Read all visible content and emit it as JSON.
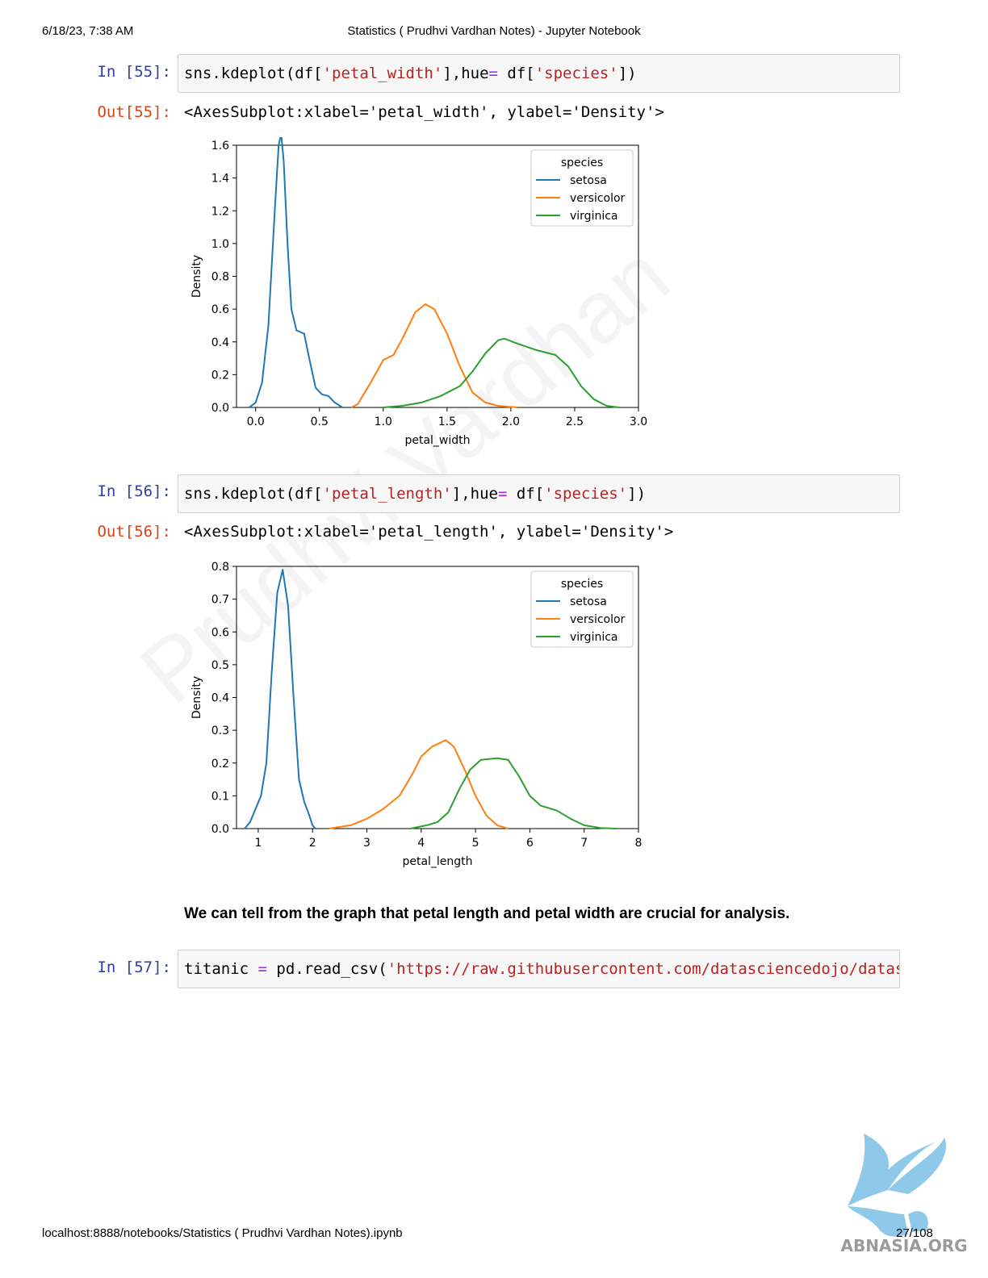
{
  "header": {
    "datetime": "6/18/23, 7:38 AM",
    "title": "Statistics ( Prudhvi Vardhan Notes) - Jupyter Notebook"
  },
  "cells": [
    {
      "in_prompt": "In [55]:",
      "code": {
        "p1": "sns.kdeplot(df[",
        "s1": "'petal_width'",
        "p2": "],hue",
        "op": "=",
        "p3": " df[",
        "s2": "'species'",
        "p4": "])"
      },
      "out_prompt": "Out[55]:",
      "out_text": "<AxesSubplot:xlabel='petal_width', ylabel='Density'>"
    },
    {
      "in_prompt": "In [56]:",
      "code": {
        "p1": "sns.kdeplot(df[",
        "s1": "'petal_length'",
        "p2": "],hue",
        "op": "=",
        "p3": " df[",
        "s2": "'species'",
        "p4": "])"
      },
      "out_prompt": "Out[56]:",
      "out_text": "<AxesSubplot:xlabel='petal_length', ylabel='Density'>"
    },
    {
      "in_prompt": "In [57]:",
      "code": {
        "p1": "titanic ",
        "op": "=",
        "p2": " pd.read_csv(",
        "s1": "'https://raw.githubusercontent.com/datasciencedojo/datas"
      }
    }
  ],
  "markdown": "We can tell from the graph that petal length and petal width are crucial for analysis.",
  "footer": {
    "url": "localhost:8888/notebooks/Statistics ( Prudhvi Vardhan Notes).ipynb",
    "page": "27/108"
  },
  "watermark": "Prudhvi Vardhan",
  "colors": {
    "setosa": "#1f77b4",
    "versicolor": "#ff7f0e",
    "virginica": "#2ca02c",
    "in_prompt": "#303f9f",
    "out_prompt": "#d84315",
    "string": "#ba2121",
    "operator": "#aa22ff"
  },
  "logo_text": "ABNASIA.ORG",
  "chart_data": [
    {
      "type": "line",
      "xlabel": "petal_width",
      "ylabel": "Density",
      "xlim": [
        -0.15,
        3.0
      ],
      "ylim": [
        0,
        1.6
      ],
      "xticks": [
        "0.0",
        "0.5",
        "1.0",
        "1.5",
        "2.0",
        "2.5",
        "3.0"
      ],
      "yticks": [
        "0.0",
        "0.2",
        "0.4",
        "0.6",
        "0.8",
        "1.0",
        "1.2",
        "1.4",
        "1.6"
      ],
      "legend": {
        "title": "species",
        "position": "top-right"
      },
      "series": [
        {
          "name": "setosa",
          "color": "#1f77b4",
          "points": [
            [
              -0.05,
              0
            ],
            [
              0.0,
              0.03
            ],
            [
              0.05,
              0.15
            ],
            [
              0.1,
              0.5
            ],
            [
              0.15,
              1.2
            ],
            [
              0.18,
              1.6
            ],
            [
              0.2,
              1.67
            ],
            [
              0.22,
              1.5
            ],
            [
              0.25,
              1.0
            ],
            [
              0.28,
              0.6
            ],
            [
              0.32,
              0.47
            ],
            [
              0.38,
              0.45
            ],
            [
              0.42,
              0.3
            ],
            [
              0.47,
              0.12
            ],
            [
              0.52,
              0.08
            ],
            [
              0.57,
              0.07
            ],
            [
              0.62,
              0.03
            ],
            [
              0.68,
              0
            ]
          ]
        },
        {
          "name": "versicolor",
          "color": "#ff7f0e",
          "points": [
            [
              0.75,
              0
            ],
            [
              0.8,
              0.02
            ],
            [
              0.9,
              0.15
            ],
            [
              1.0,
              0.29
            ],
            [
              1.08,
              0.32
            ],
            [
              1.15,
              0.42
            ],
            [
              1.25,
              0.58
            ],
            [
              1.33,
              0.63
            ],
            [
              1.4,
              0.6
            ],
            [
              1.5,
              0.45
            ],
            [
              1.6,
              0.25
            ],
            [
              1.7,
              0.09
            ],
            [
              1.8,
              0.03
            ],
            [
              1.9,
              0.01
            ],
            [
              2.05,
              0
            ]
          ]
        },
        {
          "name": "virginica",
          "color": "#2ca02c",
          "points": [
            [
              1.0,
              0
            ],
            [
              1.15,
              0.01
            ],
            [
              1.3,
              0.03
            ],
            [
              1.45,
              0.07
            ],
            [
              1.6,
              0.13
            ],
            [
              1.7,
              0.22
            ],
            [
              1.8,
              0.33
            ],
            [
              1.9,
              0.41
            ],
            [
              1.95,
              0.42
            ],
            [
              2.05,
              0.39
            ],
            [
              2.2,
              0.35
            ],
            [
              2.35,
              0.32
            ],
            [
              2.45,
              0.25
            ],
            [
              2.55,
              0.13
            ],
            [
              2.65,
              0.05
            ],
            [
              2.75,
              0.01
            ],
            [
              2.85,
              0
            ]
          ]
        }
      ]
    },
    {
      "type": "line",
      "xlabel": "petal_length",
      "ylabel": "Density",
      "xlim": [
        0.6,
        8.0
      ],
      "ylim": [
        0,
        0.8
      ],
      "xticks": [
        "1",
        "2",
        "3",
        "4",
        "5",
        "6",
        "7",
        "8"
      ],
      "yticks": [
        "0.0",
        "0.1",
        "0.2",
        "0.3",
        "0.4",
        "0.5",
        "0.6",
        "0.7",
        "0.8"
      ],
      "legend": {
        "title": "species",
        "position": "top-right"
      },
      "series": [
        {
          "name": "setosa",
          "color": "#1f77b4",
          "points": [
            [
              0.75,
              0
            ],
            [
              0.85,
              0.02
            ],
            [
              0.95,
              0.06
            ],
            [
              1.05,
              0.1
            ],
            [
              1.15,
              0.2
            ],
            [
              1.25,
              0.48
            ],
            [
              1.35,
              0.72
            ],
            [
              1.45,
              0.79
            ],
            [
              1.55,
              0.68
            ],
            [
              1.65,
              0.4
            ],
            [
              1.75,
              0.15
            ],
            [
              1.85,
              0.08
            ],
            [
              1.92,
              0.05
            ],
            [
              2.0,
              0.01
            ],
            [
              2.05,
              0
            ]
          ]
        },
        {
          "name": "versicolor",
          "color": "#ff7f0e",
          "points": [
            [
              2.3,
              0
            ],
            [
              2.7,
              0.01
            ],
            [
              3.0,
              0.03
            ],
            [
              3.3,
              0.06
            ],
            [
              3.6,
              0.1
            ],
            [
              3.85,
              0.17
            ],
            [
              4.0,
              0.22
            ],
            [
              4.2,
              0.25
            ],
            [
              4.45,
              0.27
            ],
            [
              4.6,
              0.25
            ],
            [
              4.8,
              0.18
            ],
            [
              5.0,
              0.1
            ],
            [
              5.2,
              0.04
            ],
            [
              5.4,
              0.01
            ],
            [
              5.6,
              0
            ]
          ]
        },
        {
          "name": "virginica",
          "color": "#2ca02c",
          "points": [
            [
              3.8,
              0
            ],
            [
              4.1,
              0.01
            ],
            [
              4.3,
              0.02
            ],
            [
              4.5,
              0.05
            ],
            [
              4.7,
              0.12
            ],
            [
              4.9,
              0.18
            ],
            [
              5.1,
              0.21
            ],
            [
              5.4,
              0.215
            ],
            [
              5.6,
              0.21
            ],
            [
              5.8,
              0.16
            ],
            [
              6.0,
              0.1
            ],
            [
              6.2,
              0.07
            ],
            [
              6.5,
              0.055
            ],
            [
              6.75,
              0.03
            ],
            [
              7.0,
              0.01
            ],
            [
              7.3,
              0.002
            ],
            [
              7.6,
              0
            ]
          ]
        }
      ]
    }
  ]
}
